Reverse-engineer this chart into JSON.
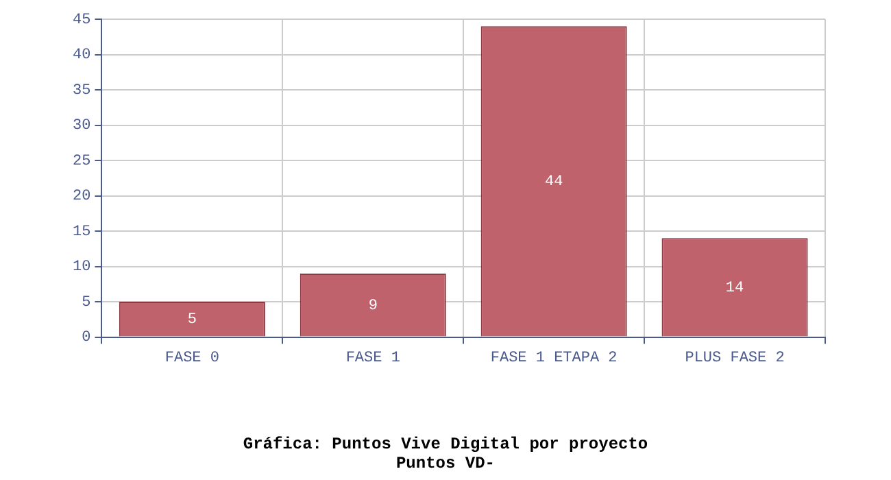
{
  "chart_data": {
    "type": "bar",
    "title": "Gráfica: Puntos Vive Digital por proyecto",
    "subtitle": "Puntos VD-",
    "categories": [
      "FASE 0",
      "FASE 1",
      "FASE 1 ETAPA 2",
      "PLUS FASE 2"
    ],
    "values": [
      5,
      9,
      44,
      14
    ],
    "color": "#c0626b",
    "ylim": [
      0,
      45
    ],
    "yticks": [
      0,
      5,
      10,
      15,
      20,
      25,
      30,
      35,
      40,
      45
    ],
    "grid": true,
    "data_labels": true
  }
}
